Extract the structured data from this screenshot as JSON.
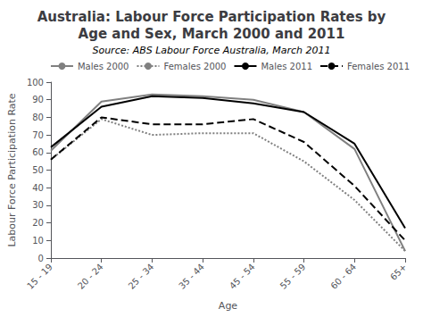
{
  "chart_data": {
    "type": "line",
    "title": "Australia: Labour Force Participation Rates by\nAge and Sex, March 2000 and 2011",
    "subtitle": "Source: ABS Labour Force Australia, March 2011",
    "xlabel": "Age",
    "ylabel": "Labour Force Participation Rate",
    "categories": [
      "15 - 19",
      "20 - 24",
      "25 - 34",
      "35 - 44",
      "45 - 54",
      "55 - 59",
      "60 - 64",
      "65+"
    ],
    "series": [
      {
        "name": "Males 2000",
        "color": "gray",
        "line_style": "solid",
        "values": [
          61,
          89,
          93,
          92,
          90,
          83,
          62,
          4
        ]
      },
      {
        "name": "Females 2000",
        "color": "gray",
        "line_style": "dotted",
        "values": [
          56,
          79,
          70,
          71,
          71,
          55,
          33,
          4
        ]
      },
      {
        "name": "Males 2011",
        "color": "black",
        "line_style": "solid",
        "values": [
          63,
          86,
          92,
          91,
          88,
          83,
          65,
          17
        ]
      },
      {
        "name": "Females 2011",
        "color": "black",
        "line_style": "dashed",
        "values": [
          56,
          80,
          76,
          76,
          79,
          66,
          41,
          10
        ]
      }
    ],
    "ylim": [
      0,
      100
    ],
    "yticks": [
      0,
      10,
      20,
      30,
      40,
      50,
      60,
      70,
      80,
      90,
      100
    ],
    "grid": false,
    "legend": "upper right"
  }
}
